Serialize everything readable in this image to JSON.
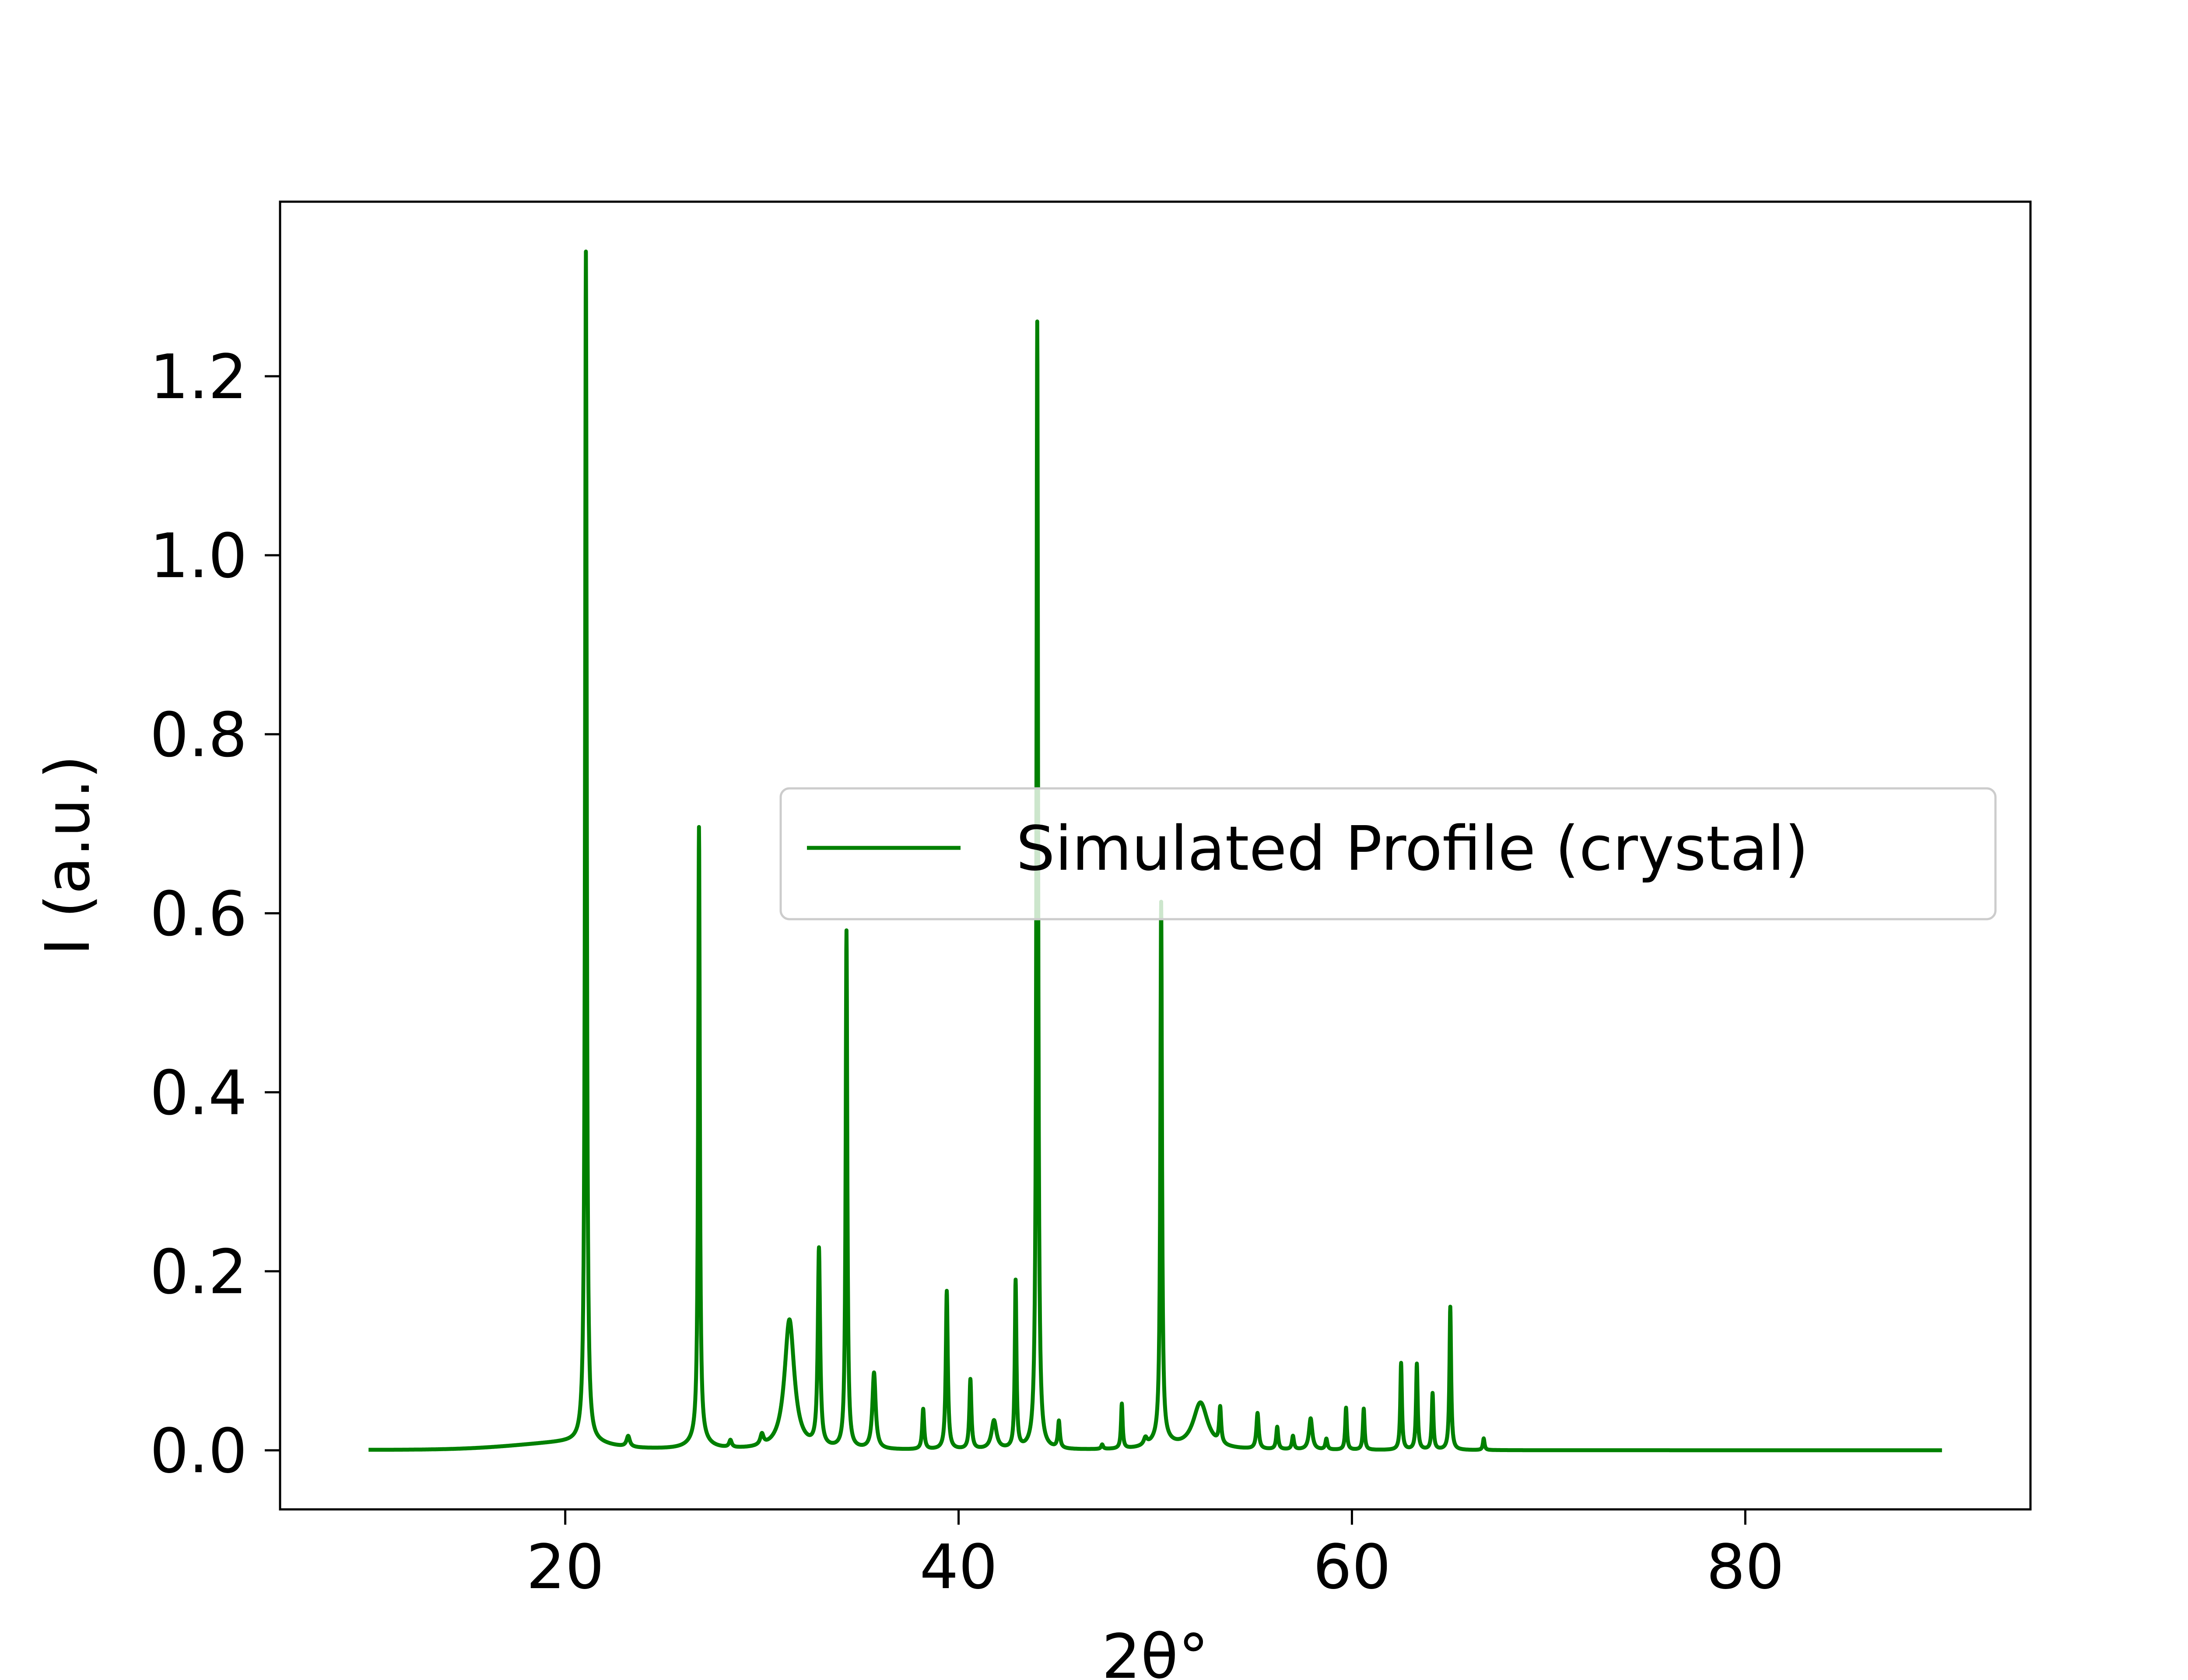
{
  "chart_data": {
    "type": "line",
    "title": "",
    "xlabel": "2θ°",
    "ylabel": "I (a.u.)",
    "xlim": [
      5.5,
      94.5
    ],
    "ylim": [
      -0.066,
      1.395
    ],
    "x_ticks": [
      20,
      40,
      60,
      80
    ],
    "x_tick_labels": [
      "20",
      "40",
      "60",
      "80"
    ],
    "y_ticks": [
      0.0,
      0.2,
      0.4,
      0.6,
      0.8,
      1.0,
      1.2
    ],
    "y_tick_labels": [
      "0.0",
      "0.2",
      "0.4",
      "0.6",
      "0.8",
      "1.0",
      "1.2"
    ],
    "grid": false,
    "legend": {
      "position": "center-right",
      "entries": [
        "Simulated Profile (crystal)"
      ]
    },
    "x_range": [
      10,
      90
    ],
    "baseline": {
      "height": 0.009,
      "center": 21.0,
      "width": 1.5
    },
    "series": [
      {
        "name": "Simulated Profile (crystal)",
        "color": "#008000",
        "peaks": [
          {
            "x": 21.05,
            "y": 1.33,
            "w": 0.05
          },
          {
            "x": 23.2,
            "y": 0.012,
            "w": 0.1
          },
          {
            "x": 26.8,
            "y": 0.683,
            "w": 0.05
          },
          {
            "x": 26.8,
            "y": 0.012,
            "w": 0.5
          },
          {
            "x": 28.4,
            "y": 0.008,
            "w": 0.08
          },
          {
            "x": 30.0,
            "y": 0.012,
            "w": 0.1
          },
          {
            "x": 31.4,
            "y": 0.145,
            "w": 0.3
          },
          {
            "x": 32.9,
            "y": 0.22,
            "w": 0.07
          },
          {
            "x": 34.3,
            "y": 0.578,
            "w": 0.05
          },
          {
            "x": 35.7,
            "y": 0.085,
            "w": 0.1
          },
          {
            "x": 38.2,
            "y": 0.045,
            "w": 0.06
          },
          {
            "x": 39.4,
            "y": 0.177,
            "w": 0.06
          },
          {
            "x": 40.6,
            "y": 0.078,
            "w": 0.06
          },
          {
            "x": 41.8,
            "y": 0.032,
            "w": 0.15
          },
          {
            "x": 42.9,
            "y": 0.187,
            "w": 0.05
          },
          {
            "x": 44.0,
            "y": 1.26,
            "w": 0.05
          },
          {
            "x": 45.1,
            "y": 0.03,
            "w": 0.06
          },
          {
            "x": 47.3,
            "y": 0.005,
            "w": 0.06
          },
          {
            "x": 48.3,
            "y": 0.05,
            "w": 0.05
          },
          {
            "x": 49.5,
            "y": 0.008,
            "w": 0.1
          },
          {
            "x": 50.3,
            "y": 0.6,
            "w": 0.05
          },
          {
            "x": 50.3,
            "y": 0.01,
            "w": 0.6
          },
          {
            "x": 52.3,
            "y": 0.052,
            "w": 0.45
          },
          {
            "x": 53.3,
            "y": 0.04,
            "w": 0.06
          },
          {
            "x": 55.2,
            "y": 0.04,
            "w": 0.07
          },
          {
            "x": 56.2,
            "y": 0.025,
            "w": 0.06
          },
          {
            "x": 57.0,
            "y": 0.015,
            "w": 0.06
          },
          {
            "x": 57.9,
            "y": 0.035,
            "w": 0.1
          },
          {
            "x": 58.7,
            "y": 0.012,
            "w": 0.06
          },
          {
            "x": 59.7,
            "y": 0.047,
            "w": 0.05
          },
          {
            "x": 60.6,
            "y": 0.046,
            "w": 0.05
          },
          {
            "x": 62.5,
            "y": 0.097,
            "w": 0.05
          },
          {
            "x": 63.3,
            "y": 0.096,
            "w": 0.05
          },
          {
            "x": 64.1,
            "y": 0.063,
            "w": 0.05
          },
          {
            "x": 65.0,
            "y": 0.16,
            "w": 0.05
          },
          {
            "x": 66.7,
            "y": 0.013,
            "w": 0.05
          }
        ]
      }
    ]
  }
}
